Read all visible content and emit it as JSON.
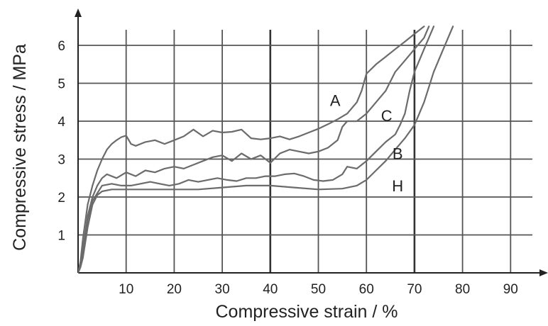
{
  "chart_data": {
    "type": "line",
    "xlabel": "Compressive strain / %",
    "ylabel": "Compressive stress / MPa",
    "xlim": [
      0,
      95
    ],
    "ylim": [
      0,
      6.5
    ],
    "x_ticks": [
      10,
      20,
      30,
      40,
      50,
      60,
      70,
      80,
      90
    ],
    "y_ticks": [
      1,
      2,
      3,
      4,
      5,
      6
    ],
    "grid": true,
    "legend": "inline labels",
    "series_color": "#6b6b6b",
    "grid_color": "#555555",
    "series": [
      {
        "name": "A",
        "label_at": [
          53.5,
          4.55
        ],
        "points": [
          [
            0,
            0
          ],
          [
            0.5,
            0.3
          ],
          [
            1,
            0.9
          ],
          [
            2,
            1.8
          ],
          [
            3,
            2.3
          ],
          [
            4,
            2.7
          ],
          [
            5,
            3.0
          ],
          [
            6,
            3.25
          ],
          [
            7,
            3.4
          ],
          [
            8,
            3.5
          ],
          [
            9,
            3.58
          ],
          [
            10,
            3.62
          ],
          [
            11,
            3.4
          ],
          [
            12,
            3.35
          ],
          [
            14,
            3.45
          ],
          [
            16,
            3.5
          ],
          [
            18,
            3.4
          ],
          [
            20,
            3.5
          ],
          [
            22,
            3.6
          ],
          [
            24,
            3.78
          ],
          [
            26,
            3.6
          ],
          [
            28,
            3.75
          ],
          [
            30,
            3.7
          ],
          [
            32,
            3.72
          ],
          [
            34,
            3.78
          ],
          [
            36,
            3.55
          ],
          [
            38,
            3.52
          ],
          [
            40,
            3.55
          ],
          [
            42,
            3.6
          ],
          [
            44,
            3.52
          ],
          [
            46,
            3.6
          ],
          [
            48,
            3.7
          ],
          [
            50,
            3.8
          ],
          [
            52,
            3.92
          ],
          [
            54,
            4.05
          ],
          [
            56,
            4.2
          ],
          [
            58,
            4.5
          ],
          [
            59,
            4.8
          ],
          [
            60,
            5.25
          ],
          [
            62,
            5.5
          ],
          [
            64,
            5.7
          ],
          [
            66,
            5.9
          ],
          [
            68,
            6.1
          ],
          [
            70,
            6.3
          ],
          [
            72,
            6.5
          ]
        ]
      },
      {
        "name": "C",
        "label_at": [
          64.2,
          4.15
        ],
        "points": [
          [
            0,
            0
          ],
          [
            0.5,
            0.2
          ],
          [
            1,
            0.6
          ],
          [
            2,
            1.5
          ],
          [
            3,
            2.0
          ],
          [
            4,
            2.3
          ],
          [
            5,
            2.5
          ],
          [
            6,
            2.6
          ],
          [
            8,
            2.5
          ],
          [
            10,
            2.65
          ],
          [
            12,
            2.55
          ],
          [
            14,
            2.7
          ],
          [
            16,
            2.65
          ],
          [
            18,
            2.75
          ],
          [
            20,
            2.8
          ],
          [
            22,
            2.75
          ],
          [
            24,
            2.85
          ],
          [
            26,
            2.95
          ],
          [
            28,
            3.05
          ],
          [
            30,
            3.1
          ],
          [
            32,
            2.95
          ],
          [
            34,
            3.15
          ],
          [
            36,
            3.0
          ],
          [
            38,
            3.1
          ],
          [
            40,
            2.9
          ],
          [
            42,
            3.15
          ],
          [
            44,
            3.25
          ],
          [
            46,
            3.2
          ],
          [
            48,
            3.15
          ],
          [
            50,
            3.2
          ],
          [
            52,
            3.3
          ],
          [
            54,
            3.5
          ],
          [
            55,
            3.85
          ],
          [
            56,
            4.0
          ],
          [
            58,
            4.0
          ],
          [
            60,
            4.2
          ],
          [
            62,
            4.5
          ],
          [
            64,
            4.8
          ],
          [
            66,
            5.3
          ],
          [
            68,
            5.6
          ],
          [
            70,
            5.9
          ],
          [
            72,
            6.2
          ],
          [
            73,
            6.5
          ]
        ]
      },
      {
        "name": "B",
        "label_at": [
          66.5,
          3.15
        ],
        "points": [
          [
            0,
            0
          ],
          [
            0.5,
            0.2
          ],
          [
            1,
            0.55
          ],
          [
            2,
            1.4
          ],
          [
            3,
            1.9
          ],
          [
            4,
            2.1
          ],
          [
            5,
            2.3
          ],
          [
            7,
            2.35
          ],
          [
            9,
            2.3
          ],
          [
            11,
            2.3
          ],
          [
            13,
            2.35
          ],
          [
            15,
            2.4
          ],
          [
            17,
            2.35
          ],
          [
            19,
            2.3
          ],
          [
            21,
            2.35
          ],
          [
            23,
            2.45
          ],
          [
            25,
            2.4
          ],
          [
            27,
            2.45
          ],
          [
            29,
            2.5
          ],
          [
            31,
            2.45
          ],
          [
            33,
            2.42
          ],
          [
            35,
            2.5
          ],
          [
            37,
            2.5
          ],
          [
            39,
            2.55
          ],
          [
            41,
            2.55
          ],
          [
            43,
            2.6
          ],
          [
            45,
            2.62
          ],
          [
            47,
            2.55
          ],
          [
            49,
            2.45
          ],
          [
            51,
            2.42
          ],
          [
            53,
            2.45
          ],
          [
            55,
            2.6
          ],
          [
            56,
            2.8
          ],
          [
            58,
            2.75
          ],
          [
            60,
            2.95
          ],
          [
            62,
            3.2
          ],
          [
            64,
            3.45
          ],
          [
            66,
            3.65
          ],
          [
            67,
            3.9
          ],
          [
            68,
            4.2
          ],
          [
            69,
            4.8
          ],
          [
            70,
            5.3
          ],
          [
            72,
            5.9
          ],
          [
            73,
            6.2
          ],
          [
            74,
            6.5
          ]
        ]
      },
      {
        "name": "H",
        "label_at": [
          66.5,
          2.3
        ],
        "points": [
          [
            0,
            0
          ],
          [
            0.5,
            0.15
          ],
          [
            1,
            0.4
          ],
          [
            2,
            1.2
          ],
          [
            3,
            1.8
          ],
          [
            4,
            2.05
          ],
          [
            5,
            2.15
          ],
          [
            7,
            2.2
          ],
          [
            10,
            2.2
          ],
          [
            15,
            2.2
          ],
          [
            20,
            2.2
          ],
          [
            25,
            2.2
          ],
          [
            30,
            2.25
          ],
          [
            35,
            2.3
          ],
          [
            40,
            2.3
          ],
          [
            45,
            2.25
          ],
          [
            50,
            2.2
          ],
          [
            55,
            2.22
          ],
          [
            58,
            2.3
          ],
          [
            60,
            2.45
          ],
          [
            62,
            2.7
          ],
          [
            64,
            2.95
          ],
          [
            66,
            3.25
          ],
          [
            68,
            3.55
          ],
          [
            70,
            3.9
          ],
          [
            72,
            4.5
          ],
          [
            74,
            5.3
          ],
          [
            76,
            5.9
          ],
          [
            78,
            6.5
          ]
        ]
      }
    ]
  }
}
